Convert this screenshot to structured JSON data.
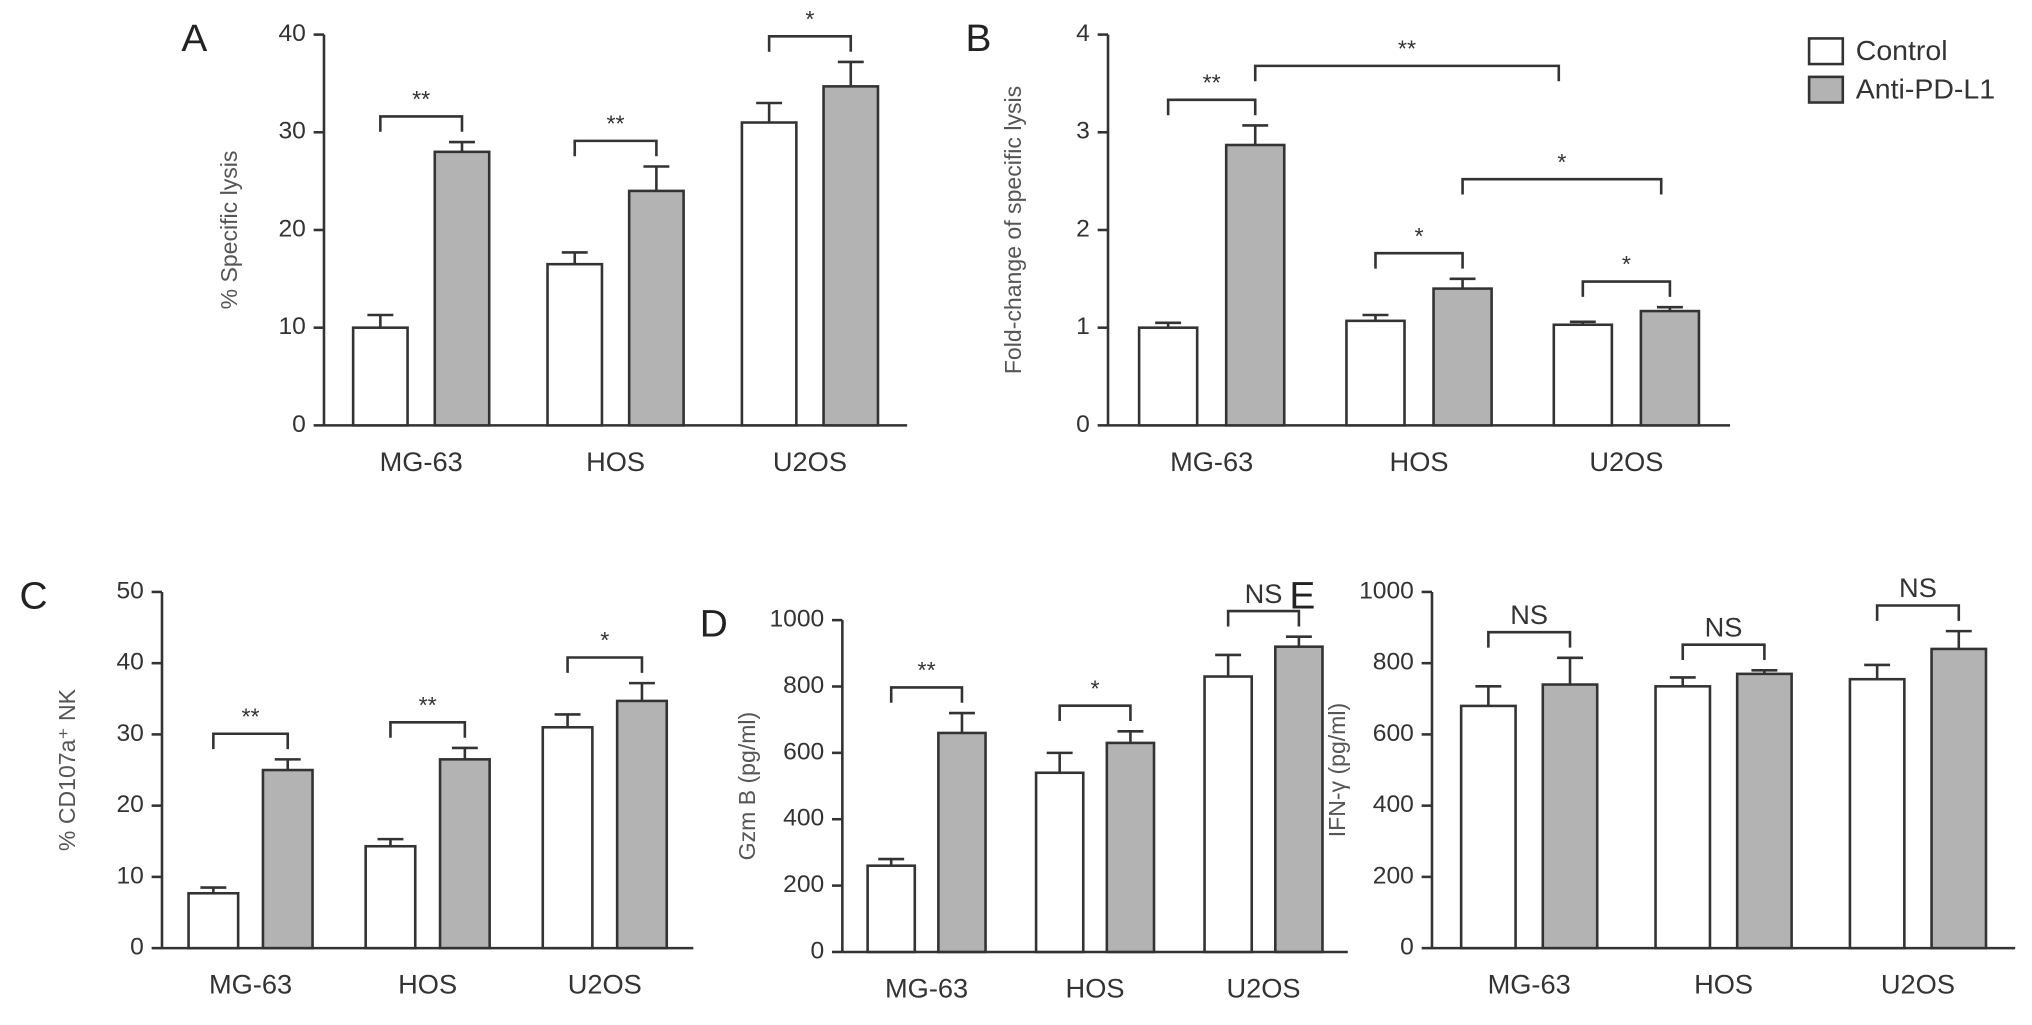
{
  "chart_data": [
    {
      "type": "bar",
      "title": "A",
      "y_label": "% Specific lysis",
      "categories": [
        "MG-63",
        "HOS",
        "U2OS"
      ],
      "series": [
        {
          "name": "Control",
          "color": "#ffffff",
          "values": [
            10,
            16.5,
            31
          ],
          "errors": [
            1.3,
            1.2,
            2
          ]
        },
        {
          "name": "Anti-PD-L1",
          "color": "#b3b3b3",
          "values": [
            28,
            24,
            34.7
          ],
          "errors": [
            1,
            2.5,
            2.5
          ]
        }
      ],
      "ylim": [
        0,
        40
      ],
      "yticks": [
        0,
        10,
        20,
        30,
        40
      ],
      "annotations": [
        "**",
        "**",
        "*"
      ]
    },
    {
      "type": "bar",
      "title": "B",
      "y_label": "Fold-change of specific lysis",
      "categories": [
        "MG-63",
        "HOS",
        "U2OS"
      ],
      "series": [
        {
          "name": "Control",
          "color": "#ffffff",
          "values": [
            1.0,
            1.07,
            1.03
          ],
          "errors": [
            0.05,
            0.06,
            0.03
          ]
        },
        {
          "name": "Anti-PD-L1",
          "color": "#b3b3b3",
          "values": [
            2.87,
            1.4,
            1.17
          ],
          "errors": [
            0.2,
            0.1,
            0.04
          ]
        }
      ],
      "ylim": [
        0,
        4
      ],
      "yticks": [
        0,
        1,
        2,
        3,
        4
      ],
      "annotations": [
        "**",
        "**",
        "*",
        "*",
        "*"
      ]
    },
    {
      "type": "bar",
      "title": "C",
      "y_label": "% CD107a⁺ NK",
      "categories": [
        "MG-63",
        "HOS",
        "U2OS"
      ],
      "series": [
        {
          "name": "Control",
          "color": "#ffffff",
          "values": [
            7.7,
            14.3,
            31
          ],
          "errors": [
            0.8,
            1,
            1.8
          ]
        },
        {
          "name": "Anti-PD-L1",
          "color": "#b3b3b3",
          "values": [
            25,
            26.5,
            34.7
          ],
          "errors": [
            1.5,
            1.6,
            2.5
          ]
        }
      ],
      "ylim": [
        0,
        50
      ],
      "yticks": [
        0,
        10,
        20,
        30,
        40,
        50
      ],
      "annotations": [
        "**",
        "**",
        "*"
      ]
    },
    {
      "type": "bar",
      "title": "D",
      "y_label": "Gzm B (pg/ml)",
      "categories": [
        "MG-63",
        "HOS",
        "U2OS"
      ],
      "series": [
        {
          "name": "Control",
          "color": "#ffffff",
          "values": [
            260,
            540,
            830
          ],
          "errors": [
            20,
            60,
            65
          ]
        },
        {
          "name": "Anti-PD-L1",
          "color": "#b3b3b3",
          "values": [
            660,
            630,
            920
          ],
          "errors": [
            60,
            35,
            30
          ]
        }
      ],
      "ylim": [
        0,
        1000
      ],
      "yticks": [
        0,
        200,
        400,
        600,
        800,
        1000
      ],
      "annotations": [
        "**",
        "*",
        "NS"
      ]
    },
    {
      "type": "bar",
      "title": "E",
      "y_label": "IFN-γ (pg/ml)",
      "categories": [
        "MG-63",
        "HOS",
        "U2OS"
      ],
      "series": [
        {
          "name": "Control",
          "color": "#ffffff",
          "values": [
            680,
            735,
            755
          ],
          "errors": [
            55,
            25,
            40
          ]
        },
        {
          "name": "Anti-PD-L1",
          "color": "#b3b3b3",
          "values": [
            740,
            770,
            840
          ],
          "errors": [
            75,
            10,
            50
          ]
        }
      ],
      "ylim": [
        0,
        1000
      ],
      "yticks": [
        0,
        200,
        400,
        600,
        800,
        1000
      ],
      "annotations": [
        "NS",
        "NS",
        "NS"
      ]
    }
  ]
}
